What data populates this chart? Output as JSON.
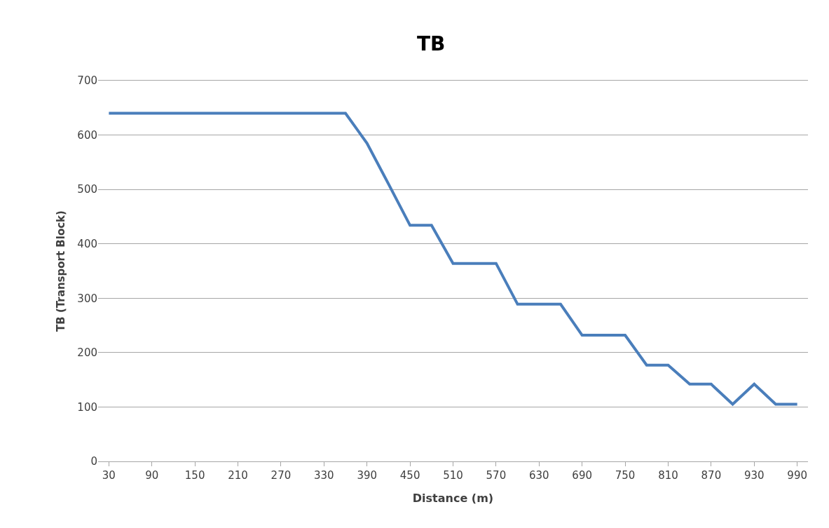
{
  "chart_data": {
    "type": "line",
    "title": "TB",
    "xlabel": "Distance (m)",
    "ylabel": "TB (Transport Block)",
    "categories": [
      "30",
      null,
      "90",
      null,
      "150",
      null,
      "210",
      null,
      "270",
      null,
      "330",
      null,
      "390",
      null,
      "450",
      null,
      "510",
      null,
      "570",
      null,
      "630",
      null,
      "690",
      null,
      "750",
      null,
      "810",
      null,
      "870",
      null,
      "930",
      null,
      "990"
    ],
    "series": [
      {
        "color": "#4a7ebb",
        "values": [
          640,
          640,
          640,
          640,
          640,
          640,
          640,
          640,
          640,
          640,
          640,
          640,
          585,
          510,
          434,
          434,
          364,
          364,
          364,
          289,
          289,
          289,
          232,
          232,
          232,
          177,
          177,
          142,
          142,
          105,
          142,
          105,
          105
        ]
      }
    ],
    "ylim": [
      0,
      700
    ],
    "yticks": [
      0,
      100,
      200,
      300,
      400,
      500,
      600,
      700
    ],
    "grid": "y",
    "marker": "none",
    "line_style": "solid"
  }
}
